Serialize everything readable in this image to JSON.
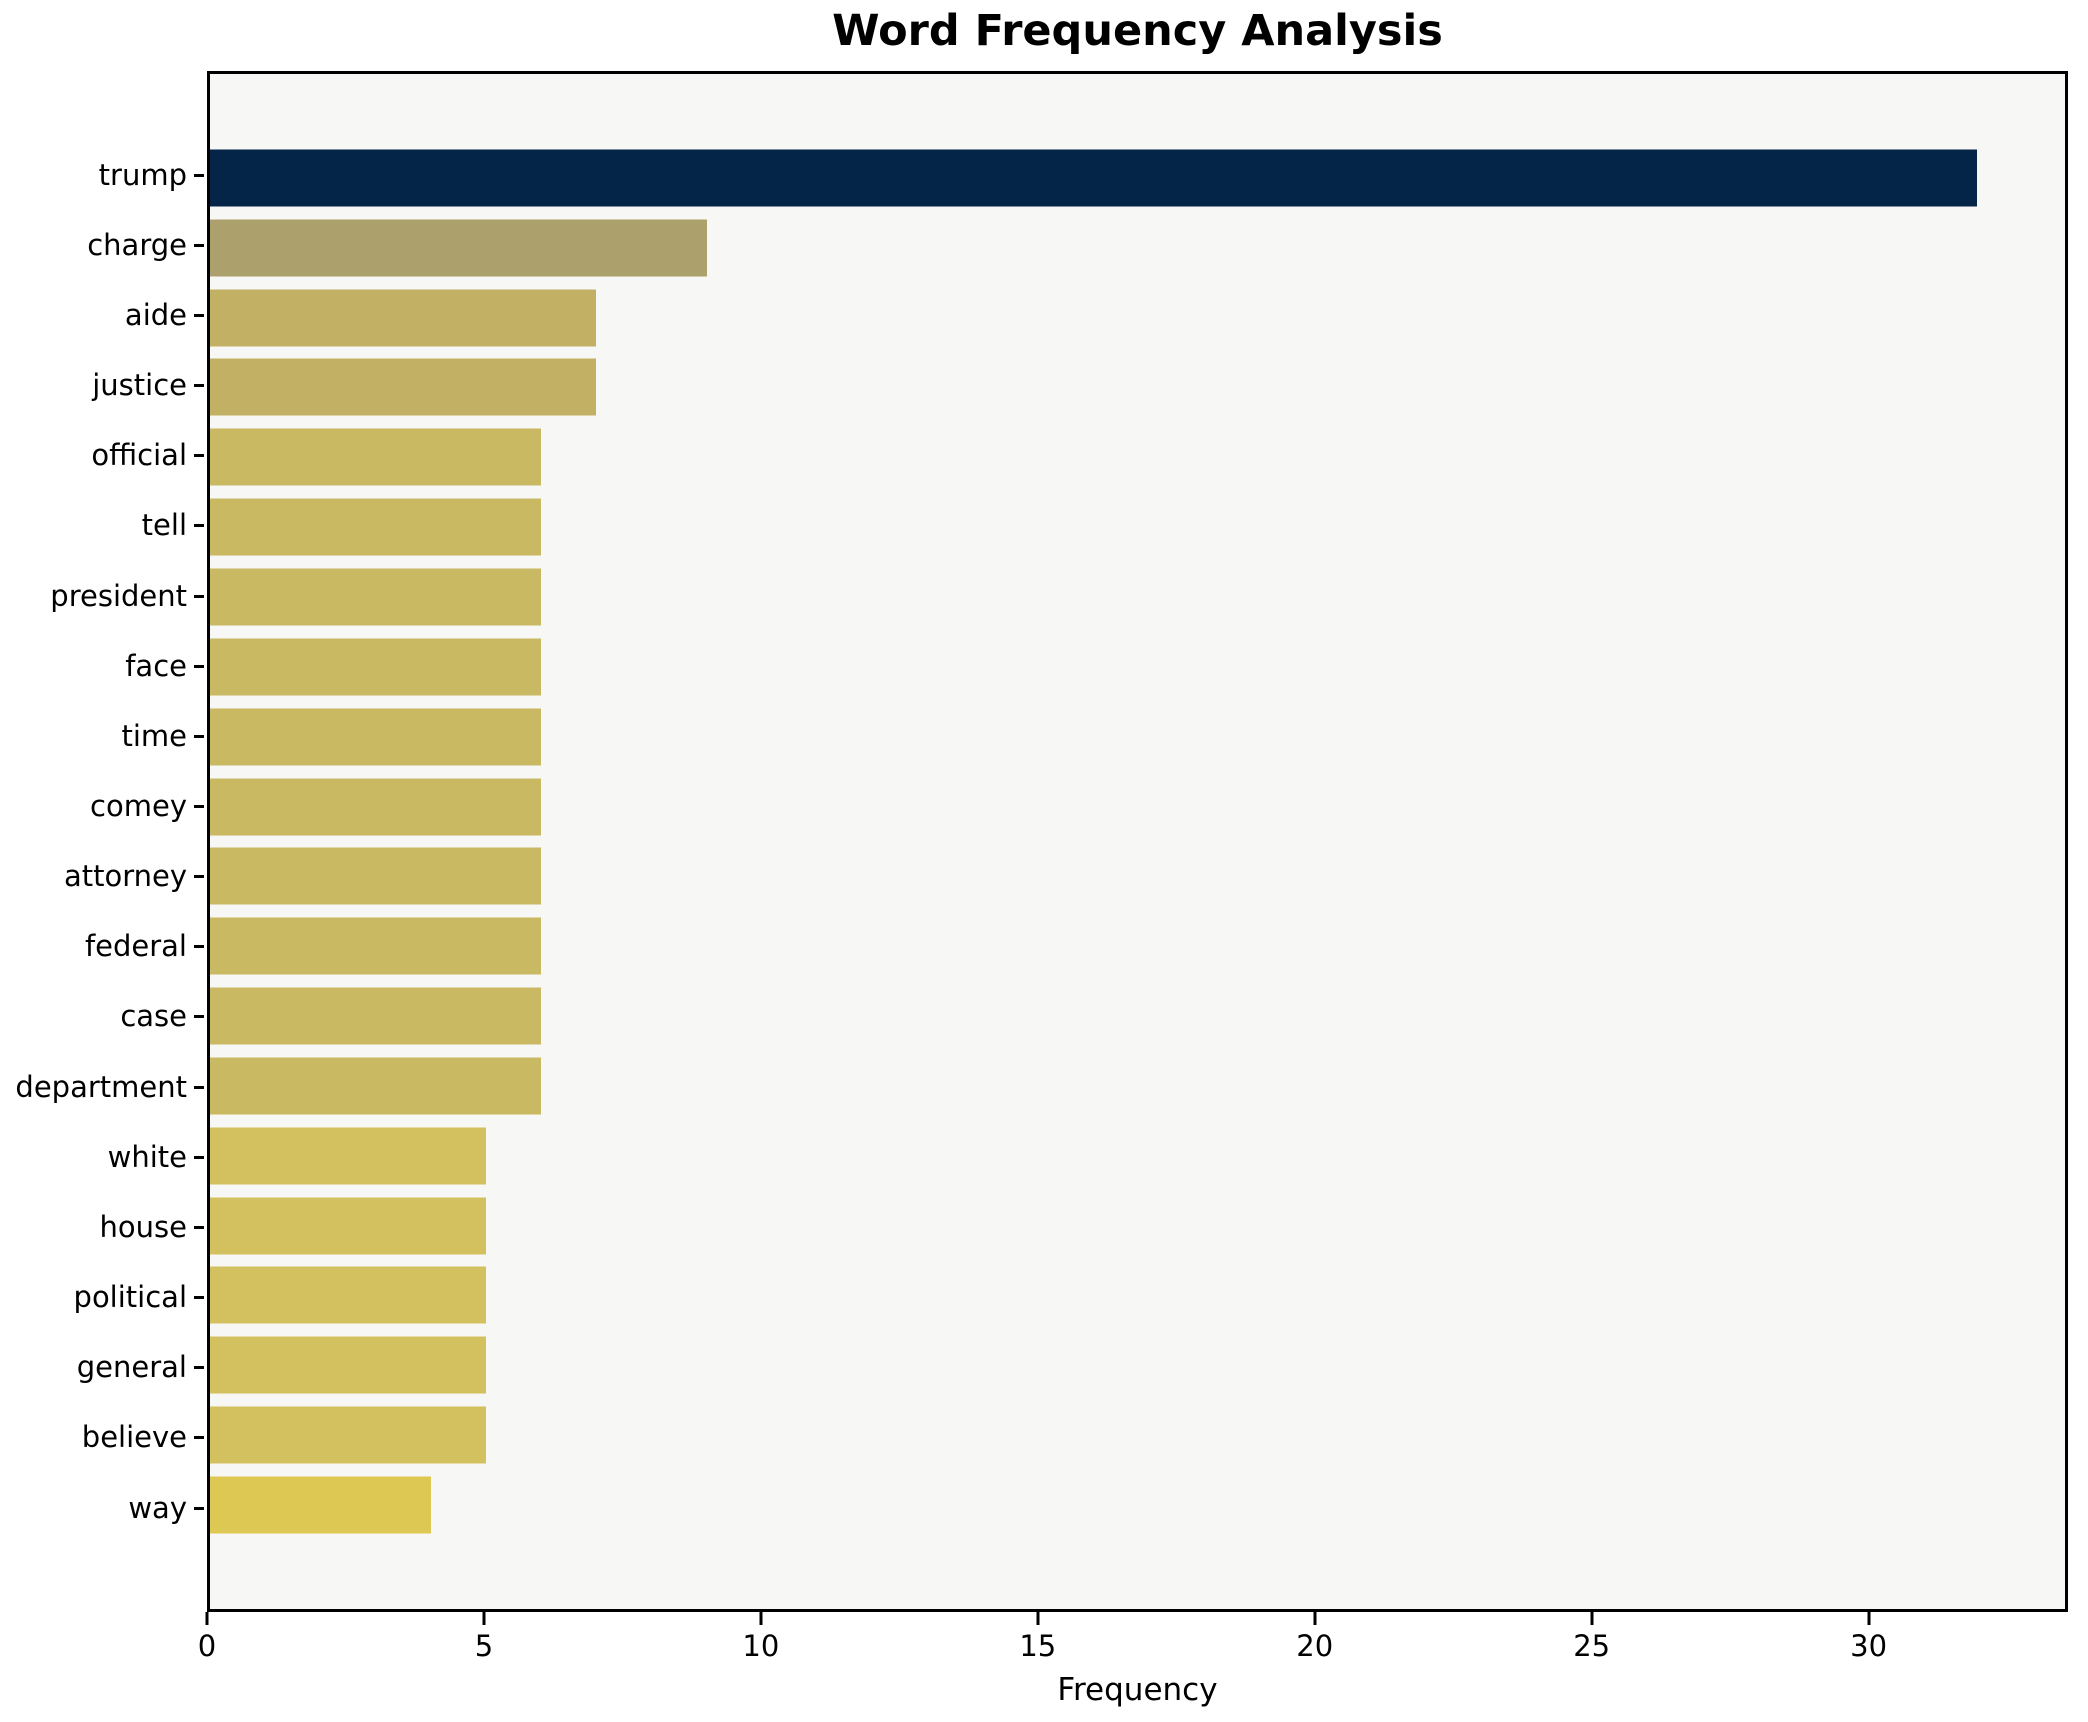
{
  "chart_data": {
    "type": "bar",
    "orientation": "horizontal",
    "title": "Word Frequency Analysis",
    "xlabel": "Frequency",
    "ylabel": "",
    "categories": [
      "trump",
      "charge",
      "aide",
      "justice",
      "official",
      "tell",
      "president",
      "face",
      "time",
      "comey",
      "attorney",
      "federal",
      "case",
      "department",
      "white",
      "house",
      "political",
      "general",
      "believe",
      "way"
    ],
    "values": [
      32,
      9,
      7,
      7,
      6,
      6,
      6,
      6,
      6,
      6,
      6,
      6,
      6,
      6,
      5,
      5,
      5,
      5,
      5,
      4
    ],
    "bar_colors": [
      "#042448",
      "#aca06c",
      "#c2b165",
      "#c2b165",
      "#cab963",
      "#cab963",
      "#cab963",
      "#cab963",
      "#cab963",
      "#cab963",
      "#cab963",
      "#cab963",
      "#cab963",
      "#cab963",
      "#d3c05e",
      "#d3c05e",
      "#d3c05e",
      "#d3c05e",
      "#d3c05e",
      "#dcc853"
    ],
    "xlim": [
      0,
      33.6
    ],
    "xticks": [
      0,
      5,
      10,
      15,
      20,
      25,
      30
    ],
    "grid": false,
    "legend_position": "none",
    "plot_background": "#f7f7f5",
    "figure_background": "#ffffff",
    "frame_color": "#000000",
    "text_color": "#000000"
  }
}
